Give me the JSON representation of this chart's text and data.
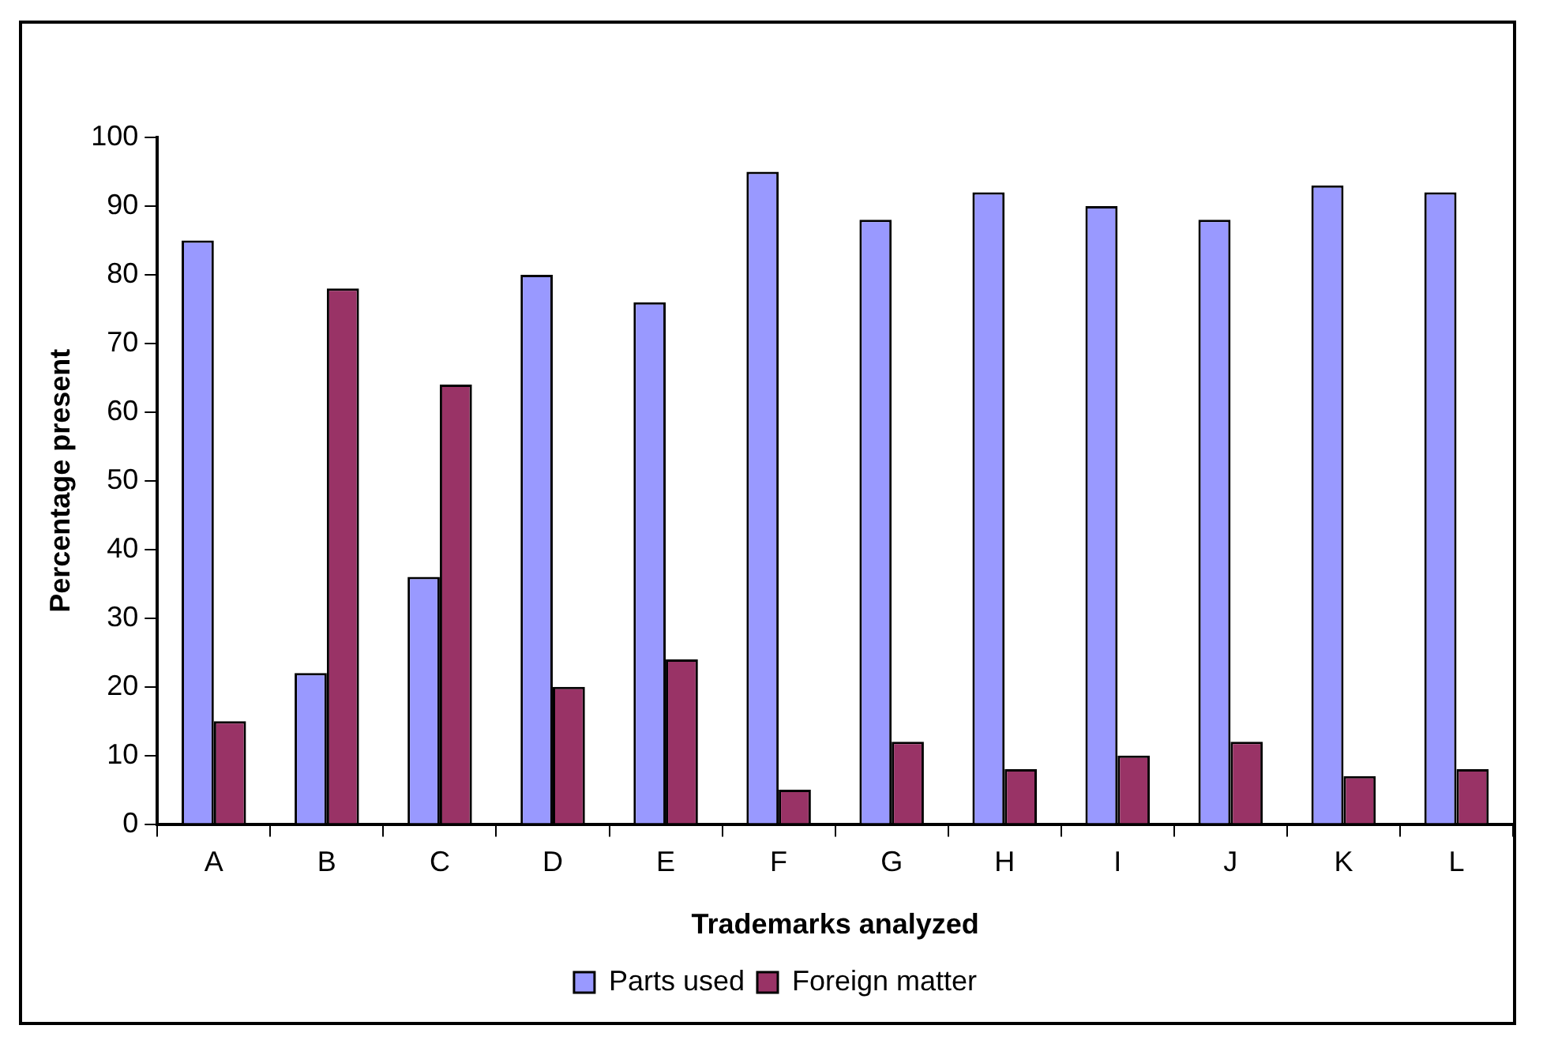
{
  "chart_data": {
    "type": "bar",
    "xlabel": "Trademarks analyzed",
    "ylabel": "Percentage present",
    "categories": [
      "A",
      "B",
      "C",
      "D",
      "E",
      "F",
      "G",
      "H",
      "I",
      "J",
      "K",
      "L"
    ],
    "series": [
      {
        "name": "Parts used",
        "color": "#9999ff",
        "values": [
          85,
          22,
          36,
          80,
          76,
          95,
          88,
          92,
          90,
          88,
          93,
          92
        ]
      },
      {
        "name": "Foreign matter",
        "color": "#993366",
        "values": [
          15,
          78,
          64,
          20,
          24,
          5,
          12,
          8,
          10,
          12,
          7,
          8
        ]
      }
    ],
    "ylim": [
      0,
      100
    ],
    "yticks": [
      0,
      10,
      20,
      30,
      40,
      50,
      60,
      70,
      80,
      90,
      100
    ],
    "grid": false,
    "legend": "bottom"
  }
}
